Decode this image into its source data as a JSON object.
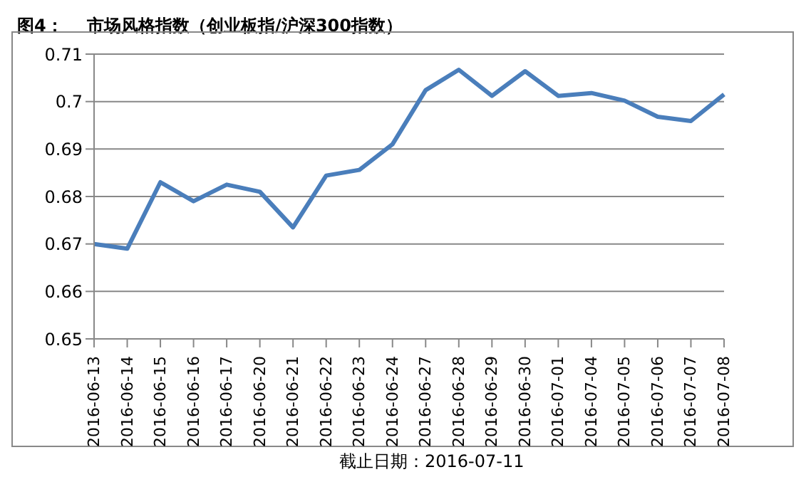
{
  "chart_data": {
    "type": "line",
    "title": "图4：    市场风格指数（创业板指/沪深300指数）",
    "categories": [
      "2016-06-13",
      "2016-06-14",
      "2016-06-15",
      "2016-06-16",
      "2016-06-17",
      "2016-06-20",
      "2016-06-21",
      "2016-06-22",
      "2016-06-23",
      "2016-06-24",
      "2016-06-27",
      "2016-06-28",
      "2016-06-29",
      "2016-06-30",
      "2016-07-01",
      "2016-07-04",
      "2016-07-05",
      "2016-07-06",
      "2016-07-07",
      "2016-07-08"
    ],
    "series": [
      {
        "color": "#4a7ebb",
        "values": [
          0.67,
          0.669,
          0.683,
          0.679,
          0.6825,
          0.681,
          0.6735,
          0.6844,
          0.6856,
          0.691,
          0.7024,
          0.7067,
          0.7012,
          0.7064,
          0.7012,
          0.7018,
          0.7002,
          0.6968,
          0.6959,
          0.7015
        ]
      }
    ],
    "ylim": [
      0.65,
      0.71
    ],
    "yticks": [
      0.65,
      0.66,
      0.67,
      0.68,
      0.69,
      0.7,
      0.71
    ],
    "grid": "y",
    "legend": false,
    "marker": "none",
    "line_style": "solid",
    "annotations": [
      "截止日期：2016-07-11"
    ]
  }
}
